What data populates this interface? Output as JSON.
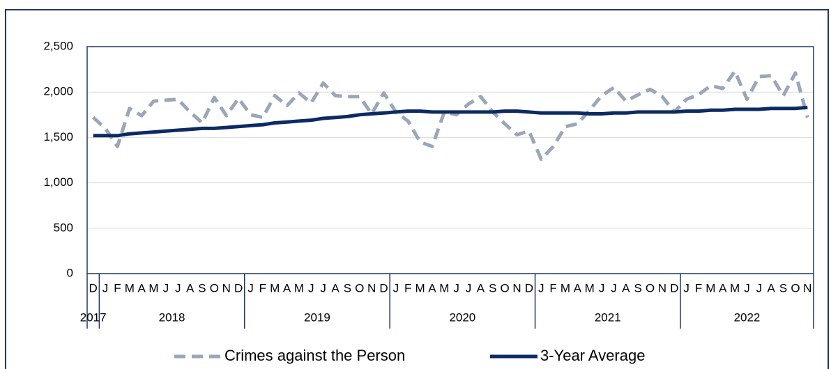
{
  "chart_data": {
    "type": "line",
    "categories": [
      {
        "month": "D",
        "year": "2017"
      },
      {
        "month": "J",
        "year": "2018"
      },
      {
        "month": "F",
        "year": "2018"
      },
      {
        "month": "M",
        "year": "2018"
      },
      {
        "month": "A",
        "year": "2018"
      },
      {
        "month": "M",
        "year": "2018"
      },
      {
        "month": "J",
        "year": "2018"
      },
      {
        "month": "J",
        "year": "2018"
      },
      {
        "month": "A",
        "year": "2018"
      },
      {
        "month": "S",
        "year": "2018"
      },
      {
        "month": "O",
        "year": "2018"
      },
      {
        "month": "N",
        "year": "2018"
      },
      {
        "month": "D",
        "year": "2018"
      },
      {
        "month": "J",
        "year": "2019"
      },
      {
        "month": "F",
        "year": "2019"
      },
      {
        "month": "M",
        "year": "2019"
      },
      {
        "month": "A",
        "year": "2019"
      },
      {
        "month": "M",
        "year": "2019"
      },
      {
        "month": "J",
        "year": "2019"
      },
      {
        "month": "J",
        "year": "2019"
      },
      {
        "month": "A",
        "year": "2019"
      },
      {
        "month": "S",
        "year": "2019"
      },
      {
        "month": "O",
        "year": "2019"
      },
      {
        "month": "N",
        "year": "2019"
      },
      {
        "month": "D",
        "year": "2019"
      },
      {
        "month": "J",
        "year": "2020"
      },
      {
        "month": "F",
        "year": "2020"
      },
      {
        "month": "M",
        "year": "2020"
      },
      {
        "month": "A",
        "year": "2020"
      },
      {
        "month": "M",
        "year": "2020"
      },
      {
        "month": "J",
        "year": "2020"
      },
      {
        "month": "J",
        "year": "2020"
      },
      {
        "month": "A",
        "year": "2020"
      },
      {
        "month": "S",
        "year": "2020"
      },
      {
        "month": "O",
        "year": "2020"
      },
      {
        "month": "N",
        "year": "2020"
      },
      {
        "month": "D",
        "year": "2020"
      },
      {
        "month": "J",
        "year": "2021"
      },
      {
        "month": "F",
        "year": "2021"
      },
      {
        "month": "M",
        "year": "2021"
      },
      {
        "month": "A",
        "year": "2021"
      },
      {
        "month": "M",
        "year": "2021"
      },
      {
        "month": "J",
        "year": "2021"
      },
      {
        "month": "J",
        "year": "2021"
      },
      {
        "month": "A",
        "year": "2021"
      },
      {
        "month": "S",
        "year": "2021"
      },
      {
        "month": "O",
        "year": "2021"
      },
      {
        "month": "N",
        "year": "2021"
      },
      {
        "month": "D",
        "year": "2021"
      },
      {
        "month": "J",
        "year": "2022"
      },
      {
        "month": "F",
        "year": "2022"
      },
      {
        "month": "M",
        "year": "2022"
      },
      {
        "month": "A",
        "year": "2022"
      },
      {
        "month": "M",
        "year": "2022"
      },
      {
        "month": "J",
        "year": "2022"
      },
      {
        "month": "J",
        "year": "2022"
      },
      {
        "month": "A",
        "year": "2022"
      },
      {
        "month": "S",
        "year": "2022"
      },
      {
        "month": "O",
        "year": "2022"
      },
      {
        "month": "N",
        "year": "2022"
      }
    ],
    "series": [
      {
        "name": "Crimes against the Person",
        "color": "#9aa7b8",
        "dashed": true,
        "values": [
          1720,
          1600,
          1400,
          1820,
          1740,
          1900,
          1910,
          1920,
          1780,
          1660,
          1940,
          1740,
          1930,
          1750,
          1720,
          1960,
          1850,
          1990,
          1880,
          2100,
          1960,
          1950,
          1950,
          1760,
          1990,
          1780,
          1680,
          1450,
          1400,
          1780,
          1750,
          1870,
          1950,
          1780,
          1650,
          1530,
          1570,
          1260,
          1400,
          1620,
          1650,
          1800,
          1960,
          2050,
          1900,
          1970,
          2030,
          1950,
          1780,
          1920,
          1970,
          2070,
          2040,
          2230,
          1920,
          2170,
          2180,
          1960,
          2210,
          1720
        ]
      },
      {
        "name": "3-Year Average",
        "color": "#0c2a63",
        "dashed": false,
        "values": [
          1520,
          1520,
          1520,
          1540,
          1550,
          1560,
          1570,
          1580,
          1590,
          1600,
          1600,
          1610,
          1620,
          1630,
          1640,
          1660,
          1670,
          1680,
          1690,
          1710,
          1720,
          1730,
          1750,
          1760,
          1770,
          1780,
          1790,
          1790,
          1780,
          1780,
          1780,
          1780,
          1780,
          1780,
          1790,
          1790,
          1780,
          1770,
          1770,
          1770,
          1770,
          1760,
          1760,
          1770,
          1770,
          1780,
          1780,
          1780,
          1780,
          1790,
          1790,
          1800,
          1800,
          1810,
          1810,
          1810,
          1820,
          1820,
          1820,
          1830
        ]
      }
    ],
    "ylim": [
      0,
      2500
    ],
    "yticks": [
      0,
      500,
      {
        "value": 1000,
        "label": "1,000"
      },
      {
        "value": 1500,
        "label": "1,500"
      },
      {
        "value": 2000,
        "label": "2,000"
      },
      {
        "value": 2500,
        "label": "2,500"
      }
    ],
    "grid": true,
    "legend": "bottom"
  }
}
